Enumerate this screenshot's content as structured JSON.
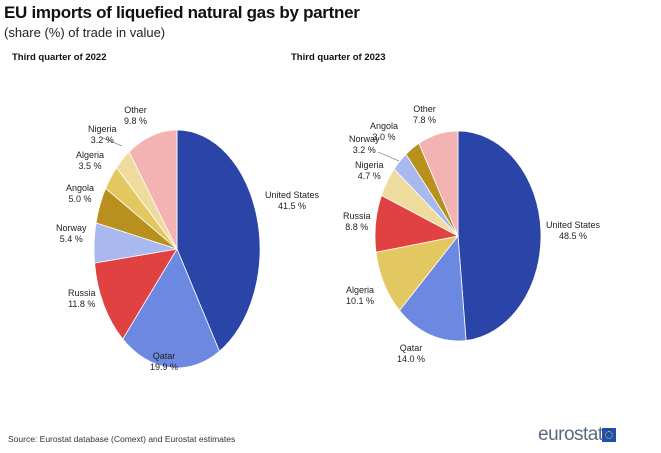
{
  "title": "EU imports of liquefied natural gas by partner",
  "subtitle": "(share (%) of trade in value)",
  "source": "Source: Eurostat database (Comext) and Eurostat estimates",
  "logo": "eurostat",
  "colors": {
    "United States": "#2a44a8",
    "Qatar": "#6c88e0",
    "Russia": "#e04242",
    "Norway": "#a9b9f0",
    "Angola": "#b8901e",
    "Algeria": "#e3c862",
    "Nigeria": "#eedb9e",
    "Other": "#f3b3b3"
  },
  "chart_data": [
    {
      "type": "pie",
      "title": "Third quarter of 2022",
      "slices": [
        {
          "label": "United States",
          "value": 41.5,
          "text": "41.5 %"
        },
        {
          "label": "Qatar",
          "value": 19.9,
          "text": "19.9 %"
        },
        {
          "label": "Russia",
          "value": 11.8,
          "text": "11.8 %"
        },
        {
          "label": "Norway",
          "value": 5.4,
          "text": "5.4 %"
        },
        {
          "label": "Angola",
          "value": 5.0,
          "text": "5.0 %"
        },
        {
          "label": "Algeria",
          "value": 3.5,
          "text": "3.5 %"
        },
        {
          "label": "Nigeria",
          "value": 3.2,
          "text": "3.2 %"
        },
        {
          "label": "Other",
          "value": 9.8,
          "text": "9.8 %"
        }
      ]
    },
    {
      "type": "pie",
      "title": "Third quarter of 2023",
      "slices": [
        {
          "label": "United States",
          "value": 48.5,
          "text": "48.5 %"
        },
        {
          "label": "Qatar",
          "value": 14.0,
          "text": "14.0 %"
        },
        {
          "label": "Algeria",
          "value": 10.1,
          "text": "10.1 %"
        },
        {
          "label": "Russia",
          "value": 8.8,
          "text": "8.8 %"
        },
        {
          "label": "Nigeria",
          "value": 4.7,
          "text": "4.7 %"
        },
        {
          "label": "Norway",
          "value": 3.2,
          "text": "3.2 %"
        },
        {
          "label": "Angola",
          "value": 3.0,
          "text": "3.0 %"
        },
        {
          "label": "Other",
          "value": 7.8,
          "text": "7.8 %"
        }
      ]
    }
  ]
}
